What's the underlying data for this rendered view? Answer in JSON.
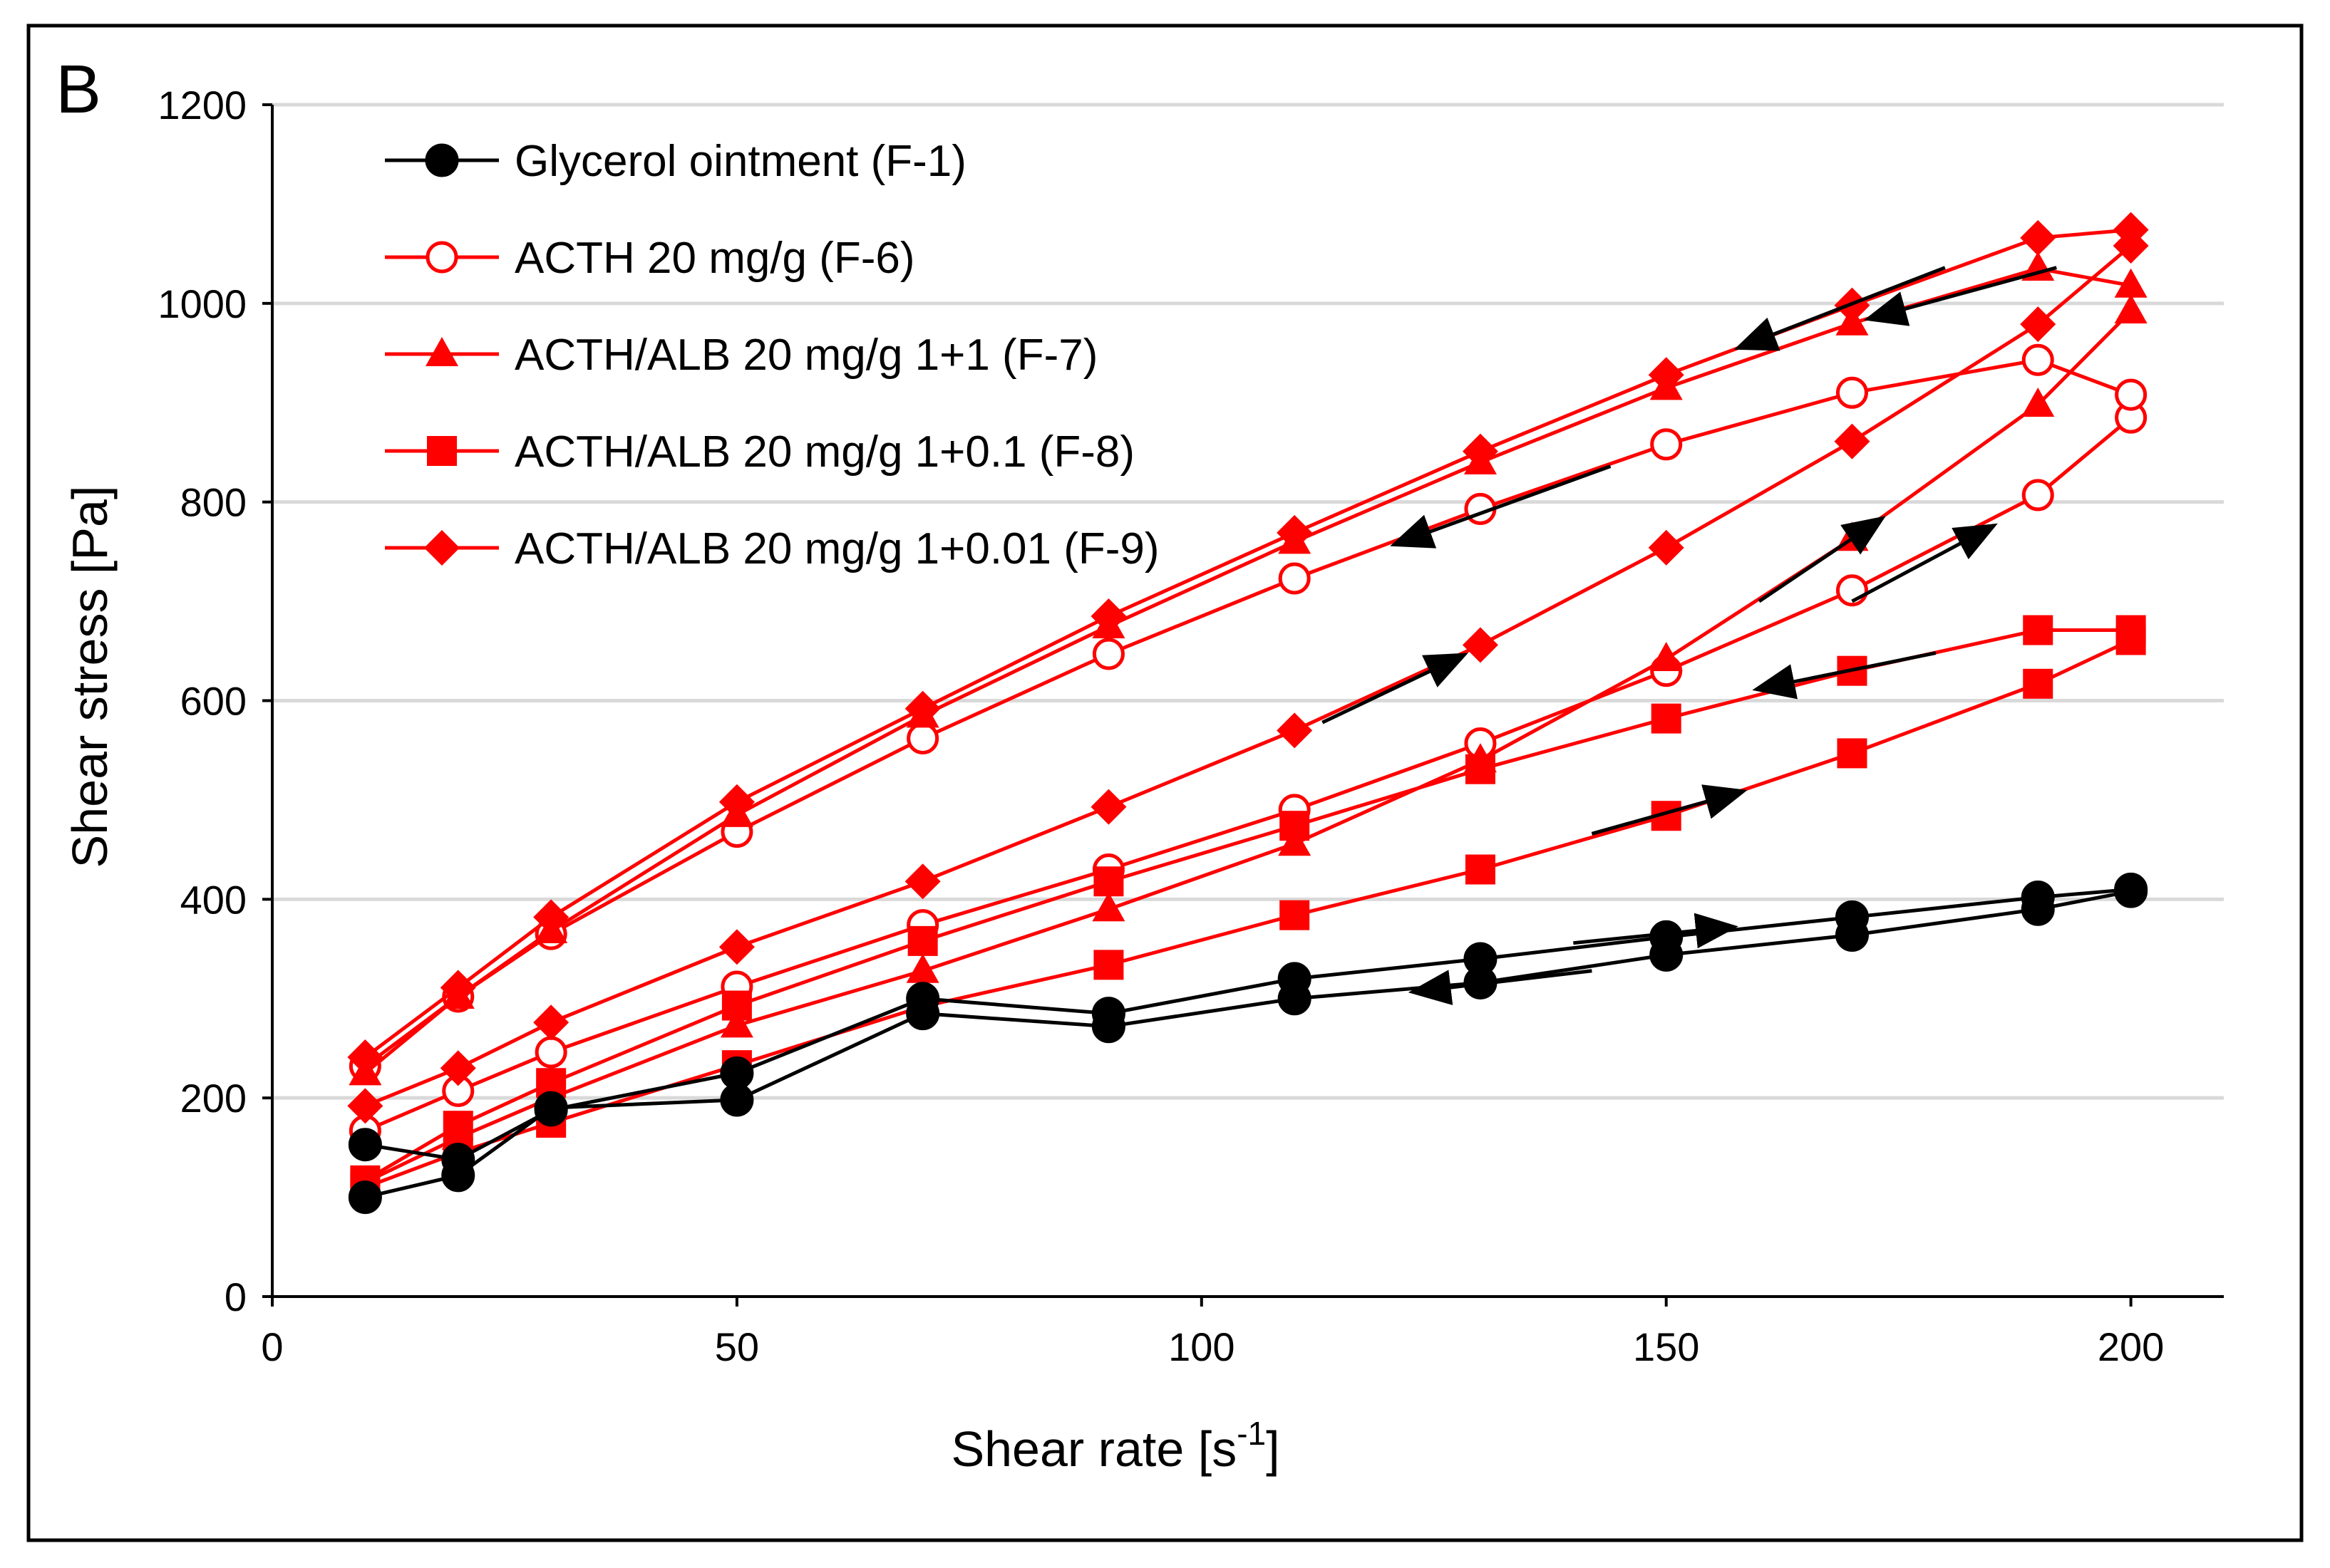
{
  "panel_label": "B",
  "colors": {
    "glycerol": "#000000",
    "acth": "#ff0000",
    "grid": "#d9d9d9",
    "axis": "#000000",
    "arrow": "#000000"
  },
  "chart_data": {
    "type": "line",
    "title": "",
    "xlabel_main": "Shear rate [s",
    "xlabel_sup": "-1",
    "xlabel_end": "]",
    "ylabel": "Shear stress [Pa]",
    "xlim": [
      0,
      210
    ],
    "ylim": [
      0,
      1200
    ],
    "x_ticks": [
      0,
      50,
      100,
      150,
      200
    ],
    "y_ticks": [
      0,
      200,
      400,
      600,
      800,
      1000,
      1200
    ],
    "grid": "horizontal",
    "legend_position": "top-left",
    "series": [
      {
        "name": "Glycerol ointment (F-1)",
        "color": "#000000",
        "marker": "circle-filled",
        "up": {
          "x": [
            10,
            20,
            30,
            50,
            70,
            90,
            110,
            130,
            150,
            170,
            190,
            200
          ],
          "y": [
            100,
            122,
            190,
            198,
            285,
            272,
            300,
            316,
            344,
            364,
            390,
            408
          ]
        },
        "down": {
          "x": [
            200,
            190,
            170,
            150,
            130,
            110,
            90,
            70,
            50,
            30,
            20,
            10
          ],
          "y": [
            410,
            402,
            382,
            362,
            340,
            320,
            285,
            300,
            225,
            188,
            138,
            153
          ]
        }
      },
      {
        "name": "ACTH 20 mg/g (F-6)",
        "color": "#ff0000",
        "marker": "circle-open",
        "up": {
          "x": [
            10,
            20,
            30,
            50,
            70,
            90,
            110,
            130,
            150,
            170,
            190,
            200
          ],
          "y": [
            167,
            207,
            246,
            312,
            374,
            430,
            490,
            557,
            630,
            711,
            807,
            885
          ]
        },
        "down": {
          "x": [
            200,
            190,
            170,
            150,
            130,
            110,
            90,
            70,
            50,
            30,
            20,
            10
          ],
          "y": [
            908,
            943,
            910,
            858,
            793,
            723,
            647,
            562,
            468,
            365,
            302,
            232
          ]
        }
      },
      {
        "name": "ACTH/ALB 20 mg/g 1+1 (F-7)",
        "color": "#ff0000",
        "marker": "triangle-filled",
        "up": {
          "x": [
            10,
            20,
            30,
            50,
            70,
            90,
            110,
            130,
            150,
            170,
            190,
            200
          ],
          "y": [
            115,
            160,
            200,
            273,
            328,
            390,
            456,
            540,
            642,
            763,
            898,
            992
          ]
        },
        "down": {
          "x": [
            200,
            190,
            170,
            150,
            130,
            110,
            90,
            70,
            50,
            30,
            20,
            10
          ],
          "y": [
            1018,
            1035,
            980,
            915,
            840,
            760,
            675,
            585,
            485,
            368,
            302,
            225
          ]
        }
      },
      {
        "name": "ACTH/ALB 20 mg/g 1+0.1 (F-8)",
        "color": "#ff0000",
        "marker": "square-filled",
        "up": {
          "x": [
            10,
            20,
            30,
            50,
            70,
            90,
            110,
            130,
            150,
            170,
            190,
            200
          ],
          "y": [
            110,
            145,
            175,
            233,
            292,
            334,
            384,
            430,
            484,
            547,
            617,
            661
          ]
        },
        "down": {
          "x": [
            200,
            190,
            170,
            150,
            130,
            110,
            90,
            70,
            50,
            30,
            20,
            10
          ],
          "y": [
            671,
            671,
            630,
            582,
            531,
            474,
            418,
            358,
            293,
            215,
            172,
            117
          ]
        }
      },
      {
        "name": "ACTH/ALB 20 mg/g 1+0.01 (F-9)",
        "color": "#ff0000",
        "marker": "diamond-filled",
        "up": {
          "x": [
            10,
            20,
            30,
            50,
            70,
            90,
            110,
            130,
            150,
            170,
            190,
            200
          ],
          "y": [
            192,
            230,
            276,
            352,
            418,
            493,
            570,
            656,
            754,
            861,
            979,
            1058
          ]
        },
        "down": {
          "x": [
            200,
            190,
            170,
            150,
            130,
            110,
            90,
            70,
            50,
            30,
            20,
            10
          ],
          "y": [
            1074,
            1066,
            998,
            928,
            851,
            769,
            685,
            592,
            498,
            382,
            311,
            241
          ]
        }
      }
    ],
    "annotations": [
      {
        "type": "arrow",
        "direction": "increasing",
        "from": [
          142,
          466
        ],
        "to": [
          158,
          508
        ]
      },
      {
        "type": "arrow",
        "direction": "increasing",
        "from": [
          140,
          356
        ],
        "to": [
          157,
          372
        ]
      },
      {
        "type": "arrow",
        "direction": "decreasing",
        "from": [
          142,
          328
        ],
        "to": [
          123,
          307
        ]
      },
      {
        "type": "arrow",
        "direction": "increasing",
        "from": [
          113,
          578
        ],
        "to": [
          128,
          645
        ]
      },
      {
        "type": "arrow",
        "direction": "decreasing",
        "from": [
          179,
          648
        ],
        "to": [
          160,
          612
        ]
      },
      {
        "type": "arrow",
        "direction": "increasing",
        "from": [
          160,
          700
        ],
        "to": [
          173,
          782
        ]
      },
      {
        "type": "arrow",
        "direction": "increasing",
        "from": [
          170,
          700
        ],
        "to": [
          185,
          775
        ]
      },
      {
        "type": "arrow",
        "direction": "decreasing",
        "from": [
          144,
          836
        ],
        "to": [
          121,
          758
        ]
      },
      {
        "type": "arrow",
        "direction": "decreasing",
        "from": [
          180,
          1036
        ],
        "to": [
          158,
          956
        ]
      },
      {
        "type": "arrow",
        "direction": "decreasing",
        "from": [
          192,
          1036
        ],
        "to": [
          172,
          985
        ]
      }
    ]
  }
}
